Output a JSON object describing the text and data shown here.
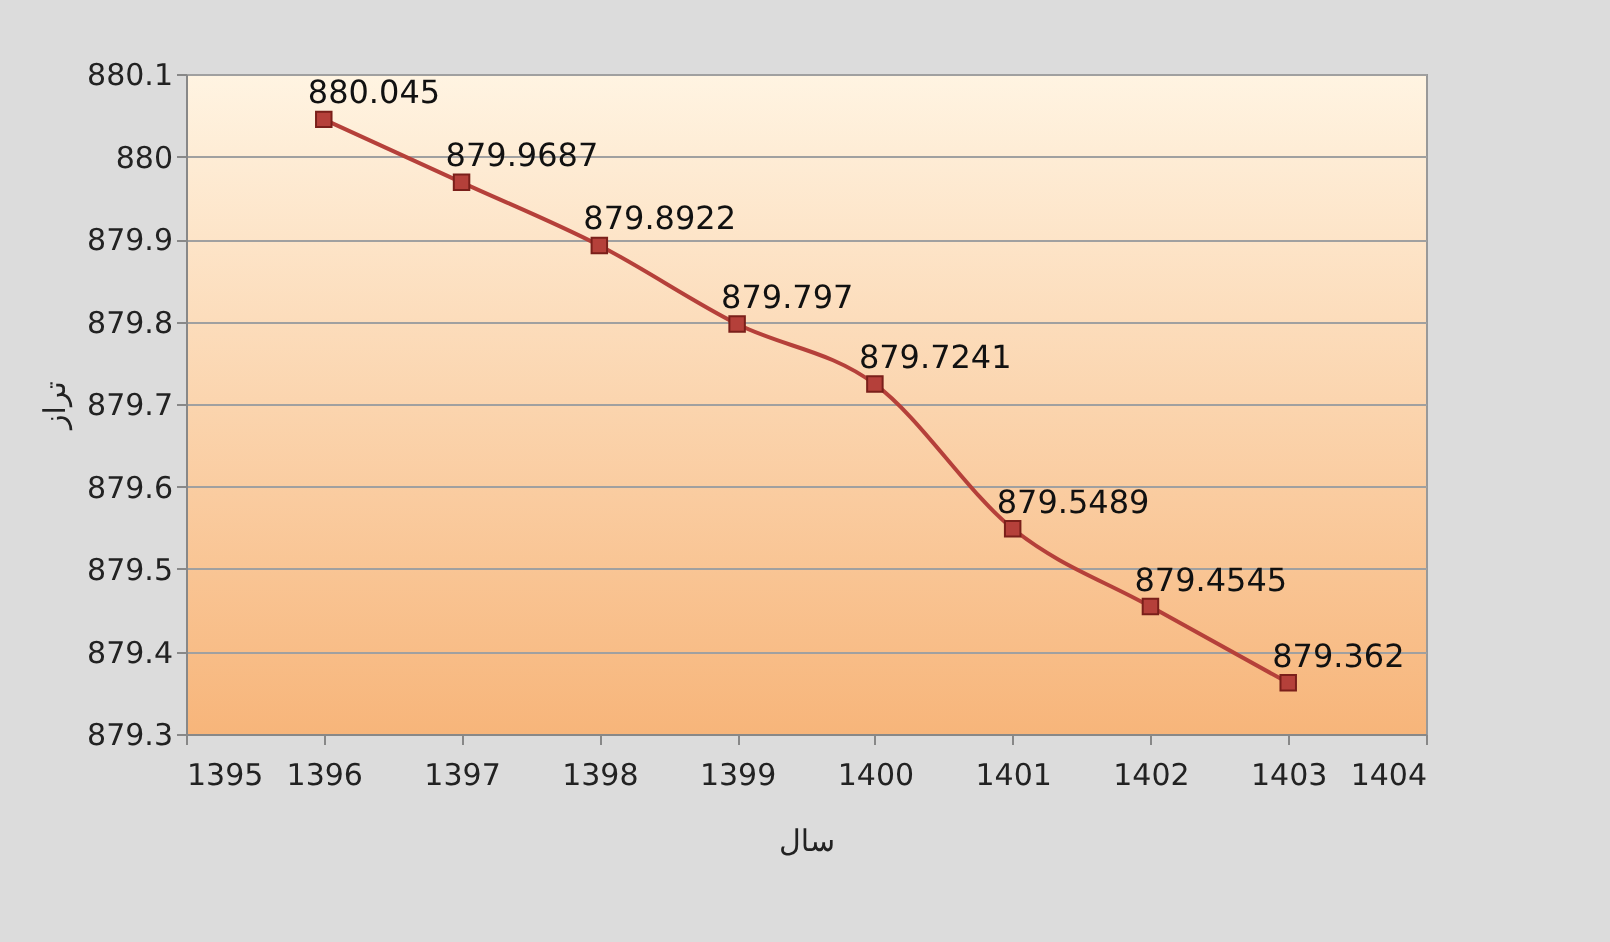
{
  "chart_data": {
    "type": "line",
    "xlabel": "سال",
    "ylabel": "تراز",
    "x": [
      1396,
      1397,
      1398,
      1399,
      1400,
      1401,
      1402,
      1403
    ],
    "series": [
      {
        "color": "#b5403a",
        "values": [
          880.045,
          879.9687,
          879.8922,
          879.797,
          879.7241,
          879.5489,
          879.4545,
          879.362
        ]
      }
    ],
    "xlim": [
      1395,
      1404
    ],
    "xticks": [
      1395,
      1396,
      1397,
      1398,
      1399,
      1400,
      1401,
      1402,
      1403,
      1404
    ],
    "ylim": [
      879.3,
      880.1
    ],
    "yticks": [
      879.3,
      879.4,
      879.5,
      879.6,
      879.7,
      879.8,
      879.9,
      880,
      880.1
    ],
    "grid": "y",
    "marker": "square",
    "data_labels": true,
    "line_style": "solid"
  }
}
